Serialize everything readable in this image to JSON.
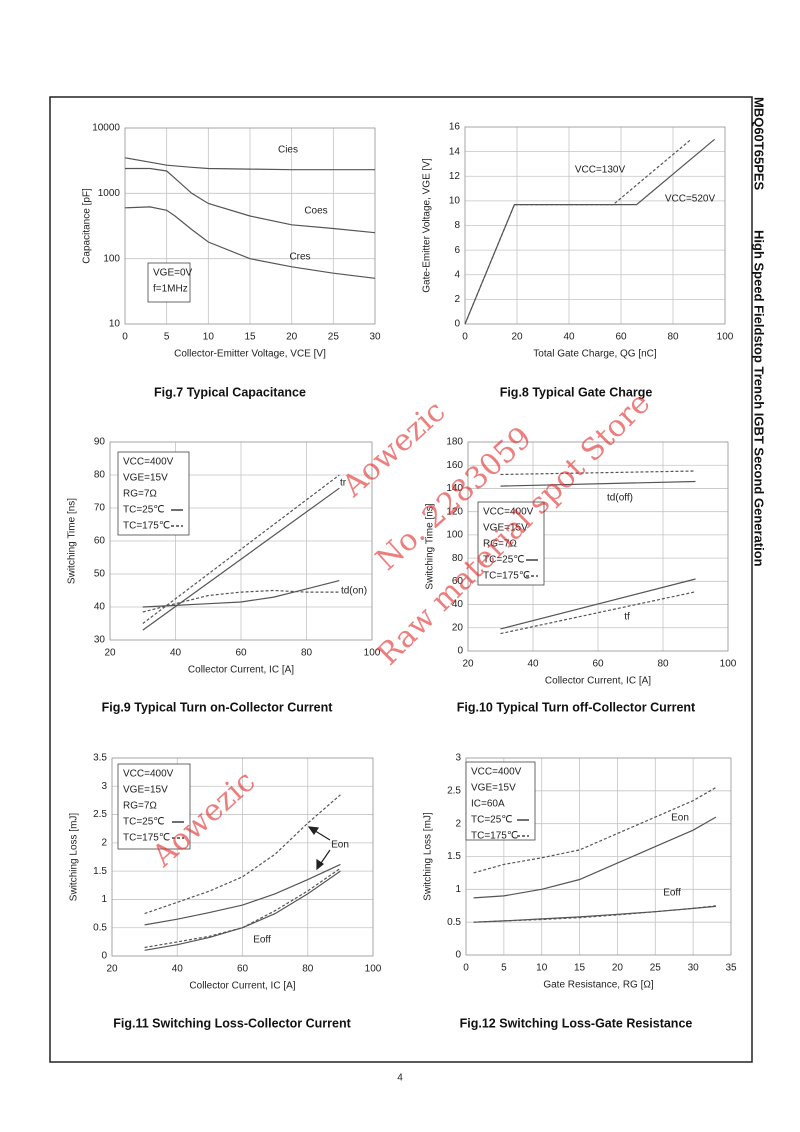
{
  "side_title": "MBQ60T65PES",
  "side_subtitle": "High Speed Fieldstop Trench IGBT Second Generation",
  "page_number": "4",
  "watermark": [
    "Aowezic",
    "No. 2283059",
    "Raw material spot Store",
    "Aowezic"
  ],
  "chart_data": [
    {
      "type": "line",
      "caption": "Fig.7 Typical Capacitance",
      "xlabel": "Collector-Emitter Voltage, VCE [V]",
      "ylabel": "Capacitance [pF]",
      "log_y": true,
      "xlim": [
        0,
        30
      ],
      "xticks": [
        0,
        5,
        10,
        15,
        20,
        25,
        30
      ],
      "ylim": [
        10,
        10000
      ],
      "yticks": [
        10,
        100,
        1000,
        10000
      ],
      "grid": true,
      "notes": [
        "VGE=0V",
        "f=1MHz"
      ],
      "series": [
        {
          "name": "Cies",
          "color": "#555555",
          "dash": false,
          "x": [
            0,
            3,
            5,
            8,
            10,
            15,
            20,
            25,
            30
          ],
          "values": [
            3500,
            3000,
            2700,
            2500,
            2400,
            2350,
            2300,
            2300,
            2300
          ]
        },
        {
          "name": "Coes",
          "color": "#555555",
          "dash": false,
          "x": [
            0,
            3,
            5,
            6,
            8,
            10,
            15,
            20,
            25,
            30
          ],
          "values": [
            2400,
            2400,
            2200,
            1700,
            1000,
            700,
            450,
            330,
            290,
            250
          ]
        },
        {
          "name": "Cres",
          "color": "#555555",
          "dash": false,
          "x": [
            0,
            3,
            5,
            6,
            8,
            10,
            15,
            20,
            25,
            30
          ],
          "values": [
            600,
            620,
            550,
            450,
            280,
            180,
            100,
            75,
            60,
            50
          ]
        }
      ]
    },
    {
      "type": "line",
      "caption": "Fig.8 Typical Gate Charge",
      "xlabel": "Total Gate Charge, QG [nC]",
      "ylabel": "Gate-Emitter Voltage, VGE [V]",
      "xlim": [
        0,
        100
      ],
      "xticks": [
        0,
        20,
        40,
        60,
        80,
        100
      ],
      "ylim": [
        0,
        16
      ],
      "yticks": [
        0,
        2,
        4,
        6,
        8,
        10,
        12,
        14,
        16
      ],
      "grid": true,
      "series": [
        {
          "name": "VCC=130V",
          "color": "#555555",
          "dash": true,
          "x": [
            0,
            19,
            57,
            87
          ],
          "values": [
            0,
            9.7,
            9.7,
            15
          ]
        },
        {
          "name": "VCC=520V",
          "color": "#555555",
          "dash": false,
          "x": [
            0,
            19,
            66,
            96
          ],
          "values": [
            0,
            9.7,
            9.7,
            15
          ]
        }
      ]
    },
    {
      "type": "line",
      "caption": "Fig.9 Typical Turn on-Collector Current",
      "xlabel": "Collector Current, IC [A]",
      "ylabel": "Switching Time [ns]",
      "xlim": [
        20,
        100
      ],
      "xticks": [
        20,
        40,
        60,
        80,
        100
      ],
      "ylim": [
        30,
        90
      ],
      "yticks": [
        30,
        40,
        50,
        60,
        70,
        80,
        90
      ],
      "grid": true,
      "notes": [
        "VCC=400V",
        "VGE=15V",
        "RG=7Ω"
      ],
      "line_legend": [
        {
          "label": "TC=25℃",
          "dash": false
        },
        {
          "label": "TC=175℃",
          "dash": true
        }
      ],
      "series": [
        {
          "name": "tr",
          "color": "#555555",
          "dash": false,
          "x": [
            30,
            90
          ],
          "values": [
            33,
            76
          ]
        },
        {
          "color": "#555555",
          "dash": true,
          "x": [
            30,
            90
          ],
          "values": [
            35,
            80
          ]
        },
        {
          "name": "td(on)",
          "color": "#555555",
          "dash": false,
          "x": [
            30,
            40,
            50,
            60,
            70,
            80,
            90
          ],
          "values": [
            40,
            40.5,
            41,
            41.5,
            43,
            45.5,
            48
          ]
        },
        {
          "color": "#555555",
          "dash": true,
          "x": [
            30,
            40,
            50,
            60,
            70,
            80,
            90
          ],
          "values": [
            38.5,
            41,
            43.5,
            44.5,
            45,
            44.5,
            44.5
          ]
        }
      ]
    },
    {
      "type": "line",
      "caption": "Fig.10 Typical Turn off-Collector Current",
      "xlabel": "Collector Current, IC [A]",
      "ylabel": "Switching Time [ns]",
      "xlim": [
        20,
        100
      ],
      "xticks": [
        20,
        40,
        60,
        80,
        100
      ],
      "ylim": [
        0,
        180
      ],
      "yticks": [
        0,
        20,
        40,
        60,
        80,
        100,
        120,
        140,
        160,
        180
      ],
      "grid": true,
      "notes": [
        "VCC=400V",
        "VGE=15V",
        "RG=7Ω"
      ],
      "line_legend": [
        {
          "label": "TC=25℃",
          "dash": false
        },
        {
          "label": "TC=175℃",
          "dash": true
        }
      ],
      "series": [
        {
          "name": "td(off)",
          "color": "#555555",
          "dash": false,
          "x": [
            30,
            90
          ],
          "values": [
            142,
            146
          ]
        },
        {
          "color": "#555555",
          "dash": true,
          "x": [
            30,
            90
          ],
          "values": [
            152,
            155
          ]
        },
        {
          "name": "tf",
          "color": "#555555",
          "dash": false,
          "x": [
            30,
            90
          ],
          "values": [
            19,
            62
          ]
        },
        {
          "color": "#555555",
          "dash": true,
          "x": [
            30,
            90
          ],
          "values": [
            15,
            51
          ]
        }
      ]
    },
    {
      "type": "line",
      "caption": "Fig.11 Switching Loss-Collector Current",
      "xlabel": "Collector Current, IC [A]",
      "ylabel": "Switching Loss [mJ]",
      "xlim": [
        20,
        100
      ],
      "xticks": [
        20,
        40,
        60,
        80,
        100
      ],
      "ylim": [
        0,
        3.5
      ],
      "yticks": [
        0,
        0.5,
        1,
        1.5,
        2,
        2.5,
        3,
        3.5
      ],
      "grid": true,
      "notes": [
        "VCC=400V",
        "VGE=15V",
        "RG=7Ω"
      ],
      "line_legend": [
        {
          "label": "TC=25℃",
          "dash": false
        },
        {
          "label": "TC=175℃",
          "dash": true
        }
      ],
      "series": [
        {
          "name": "Eon",
          "color": "#555555",
          "dash": false,
          "x": [
            30,
            40,
            50,
            60,
            70,
            80,
            90
          ],
          "values": [
            0.55,
            0.65,
            0.77,
            0.9,
            1.1,
            1.35,
            1.62
          ]
        },
        {
          "color": "#555555",
          "dash": true,
          "x": [
            30,
            40,
            50,
            60,
            70,
            80,
            90
          ],
          "values": [
            0.75,
            0.95,
            1.15,
            1.4,
            1.8,
            2.35,
            2.85
          ]
        },
        {
          "name": "Eoff",
          "color": "#555555",
          "dash": false,
          "x": [
            30,
            40,
            50,
            60,
            70,
            80,
            90
          ],
          "values": [
            0.1,
            0.2,
            0.33,
            0.5,
            0.75,
            1.1,
            1.5
          ]
        },
        {
          "color": "#555555",
          "dash": true,
          "x": [
            30,
            40,
            50,
            60,
            70,
            80,
            90
          ],
          "values": [
            0.15,
            0.25,
            0.35,
            0.5,
            0.8,
            1.15,
            1.55
          ]
        }
      ]
    },
    {
      "type": "line",
      "caption": "Fig.12 Switching Loss-Gate Resistance",
      "xlabel": "Gate Resistance, RG [Ω]",
      "ylabel": "Switching Loss [mJ]",
      "xlim": [
        0,
        35
      ],
      "xticks": [
        0,
        5,
        10,
        15,
        20,
        25,
        30,
        35
      ],
      "ylim": [
        0,
        3
      ],
      "yticks": [
        0,
        0.5,
        1,
        1.5,
        2,
        2.5,
        3
      ],
      "grid": true,
      "notes": [
        "VCC=400V",
        "VGE=15V",
        "IC=60A"
      ],
      "line_legend": [
        {
          "label": "TC=25℃",
          "dash": false
        },
        {
          "label": "TC=175℃",
          "dash": true
        }
      ],
      "series": [
        {
          "name": "Eon",
          "color": "#555555",
          "dash": false,
          "x": [
            1,
            5,
            10,
            15,
            20,
            25,
            30,
            33
          ],
          "values": [
            0.87,
            0.9,
            1,
            1.15,
            1.4,
            1.65,
            1.9,
            2.1
          ]
        },
        {
          "color": "#555555",
          "dash": true,
          "x": [
            1,
            5,
            10,
            15,
            20,
            25,
            30,
            33
          ],
          "values": [
            1.25,
            1.38,
            1.48,
            1.6,
            1.85,
            2.1,
            2.35,
            2.55
          ]
        },
        {
          "name": "Eoff",
          "color": "#555555",
          "dash": false,
          "x": [
            1,
            5,
            10,
            15,
            20,
            25,
            30,
            33
          ],
          "values": [
            0.5,
            0.52,
            0.55,
            0.58,
            0.62,
            0.66,
            0.71,
            0.74
          ]
        },
        {
          "color": "#555555",
          "dash": true,
          "x": [
            1,
            5,
            10,
            15,
            20,
            25,
            30,
            33
          ],
          "values": [
            0.5,
            0.52,
            0.54,
            0.57,
            0.61,
            0.66,
            0.71,
            0.75
          ]
        }
      ]
    }
  ]
}
